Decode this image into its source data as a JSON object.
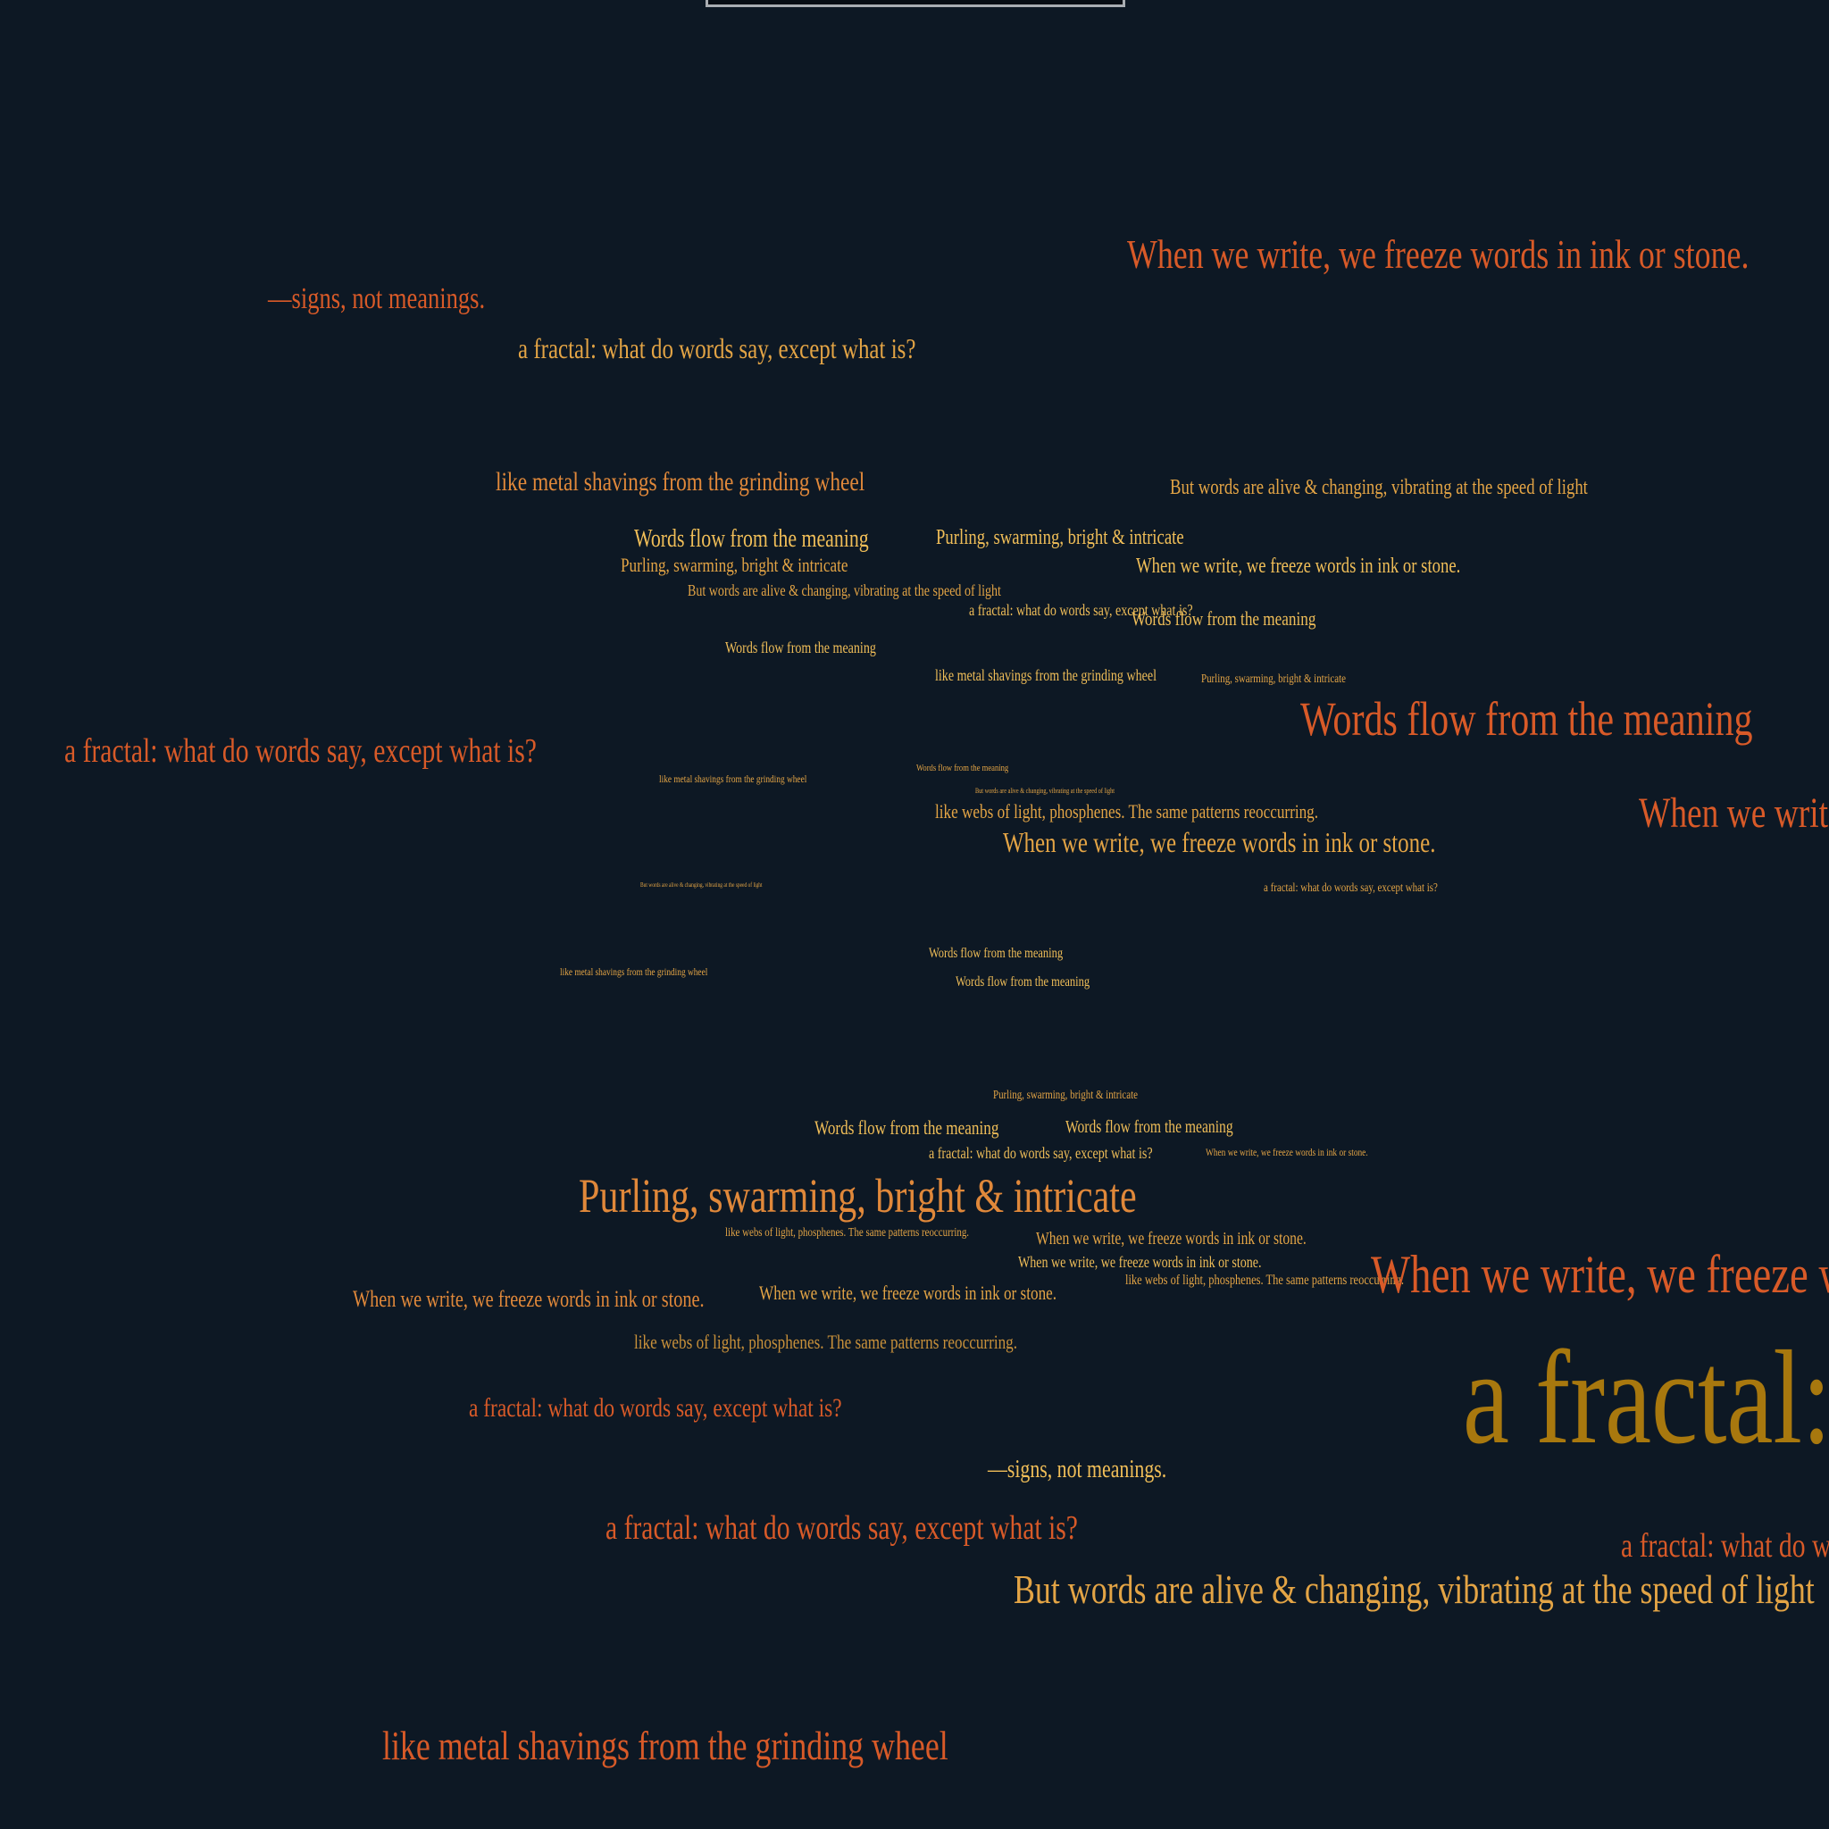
{
  "colors": {
    "background": "#0d1824",
    "orange": "#d85a28",
    "amber": "#e0883a",
    "gold": "#e3a445",
    "light": "#f0be58",
    "dark_gold": "#a8780e"
  },
  "items": [
    {
      "text": "When we write, we freeze words in ink or stone.",
      "color": "#d85a28"
    },
    {
      "text": "—signs, not meanings.",
      "color": "#d85a28"
    },
    {
      "text": "a fractal: what do words say, except what is?",
      "color": "#e3a445"
    },
    {
      "text": "like metal shavings from the grinding wheel",
      "color": "#e0883a"
    },
    {
      "text": "Words flow from the meaning",
      "color": "#f0be58"
    },
    {
      "text": "Purling, swarming, bright & intricate",
      "color": "#e3a445"
    },
    {
      "text": "But words are alive & changing, vibrating at the speed of light",
      "color": "#e3a445"
    },
    {
      "text": "Purling, swarming, bright & intricate",
      "color": "#f0be58"
    },
    {
      "text": "But words are alive & changing, vibrating at the speed of light",
      "color": "#e3a445"
    },
    {
      "text": "When we write, we freeze words in ink or stone.",
      "color": "#f0be58"
    },
    {
      "text": "a fractal: what do words say, except what is?",
      "color": "#f0be58"
    },
    {
      "text": "Words flow from the meaning",
      "color": "#f0be58"
    },
    {
      "text": "Words flow from the meaning",
      "color": "#f0be58"
    },
    {
      "text": "like metal shavings from the grinding wheel",
      "color": "#f0be58"
    },
    {
      "text": "Purling, swarming, bright & intricate",
      "color": "#e3a445"
    },
    {
      "text": "Words flow from the meaning",
      "color": "#d85a28"
    },
    {
      "text": "a fractal: what do words say, except what is?",
      "color": "#d85a28"
    },
    {
      "text": "When we write, we freeze words in ink or stone.",
      "color": "#d85a28"
    },
    {
      "text": "like metal shavings from the grinding wheel",
      "color": "#e3a445"
    },
    {
      "text": "Words flow from the meaning",
      "color": "#e3a445"
    },
    {
      "text": "But words are alive & changing, vibrating at the speed of light",
      "color": "#e3a445"
    },
    {
      "text": "like webs of light, phosphenes. The same patterns reoccurring.",
      "color": "#e3a445"
    },
    {
      "text": "When we write, we freeze words in ink or stone.",
      "color": "#e3a445"
    },
    {
      "text": "a fractal: what do words say, except what is?",
      "color": "#e3a445"
    },
    {
      "text": "But words are alive & changing, vibrating at the speed of light",
      "color": "#e3a445"
    },
    {
      "text": "like metal shavings from the grinding wheel",
      "color": "#e3a445"
    },
    {
      "text": "Words flow from the meaning",
      "color": "#f0be58"
    },
    {
      "text": "Words flow from the meaning",
      "color": "#f0be58"
    },
    {
      "text": "Purling, swarming, bright & intricate",
      "color": "#e3a445"
    },
    {
      "text": "Words flow from the meaning",
      "color": "#f0be58"
    },
    {
      "text": "Words flow from the meaning",
      "color": "#f0be58"
    },
    {
      "text": "a fractal: what do words say, except what is?",
      "color": "#f0be58"
    },
    {
      "text": "When we write, we freeze words in ink or stone.",
      "color": "#e3a445"
    },
    {
      "text": "Purling, swarming, bright & intricate",
      "color": "#e0883a"
    },
    {
      "text": "like webs of light, phosphenes. The same patterns reoccurring.",
      "color": "#e3a445"
    },
    {
      "text": "When we write, we freeze words in ink or stone.",
      "color": "#e3a445"
    },
    {
      "text": "When we write, we freeze words in ink or stone.",
      "color": "#f0be58"
    },
    {
      "text": "like webs of light, phosphenes. The same patterns reoccurring.",
      "color": "#e3a445"
    },
    {
      "text": "When we write, we freeze words in ink or stone.",
      "color": "#d85a28"
    },
    {
      "text": "a fractal: what do words say, except what is?",
      "color": "#a8780e"
    },
    {
      "text": "When we write, we freeze words in ink or stone.",
      "color": "#e0883a"
    },
    {
      "text": "When we write, we freeze words in ink or stone.",
      "color": "#e3a445"
    },
    {
      "text": "like webs of light, phosphenes. The same patterns reoccurring.",
      "color": "#c8903a"
    },
    {
      "text": "a fractal: what do words say, except what is?",
      "color": "#d85a28"
    },
    {
      "text": "—signs, not meanings.",
      "color": "#f0be58"
    },
    {
      "text": "a fractal: what do words say, except what is?",
      "color": "#d85a28"
    },
    {
      "text": "a fractal: what do words say, except what is?",
      "color": "#d85a28"
    },
    {
      "text": "But words are alive & changing, vibrating at the speed of light",
      "color": "#e3a445"
    },
    {
      "text": "like metal shavings from the grinding wheel",
      "color": "#d85a28"
    }
  ]
}
